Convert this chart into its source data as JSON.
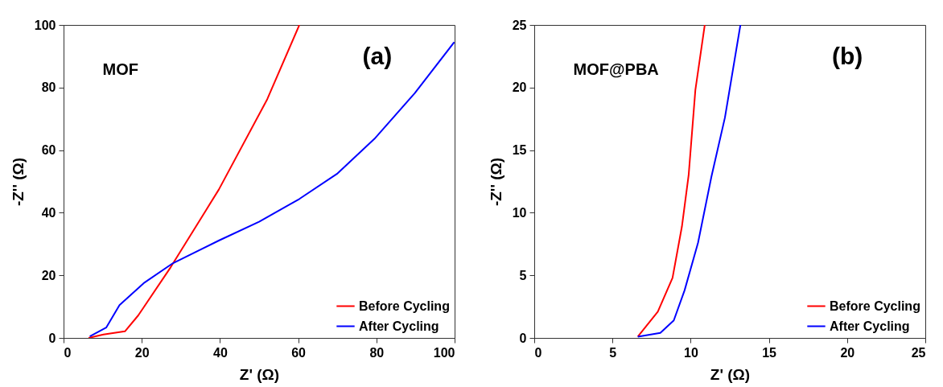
{
  "chart_data": [
    {
      "type": "line",
      "xlabel": "Z' (Ω)",
      "ylabel": "-Z'' (Ω)",
      "annotations": [
        "MOF",
        "(a)"
      ],
      "xlim": [
        0,
        100
      ],
      "ylim": [
        0,
        100
      ],
      "xticks": [
        0,
        20,
        40,
        60,
        80,
        100
      ],
      "yticks": [
        0,
        20,
        40,
        60,
        80,
        100
      ],
      "legend": "bottom right",
      "series": [
        {
          "name": "Before Cycling",
          "color": "#ff0000",
          "x": [
            6.4,
            10.2,
            15.7,
            19.1,
            27.4,
            39.7,
            52.1,
            60.3
          ],
          "values": [
            0,
            1.1,
            2.1,
            7.2,
            22.6,
            47.4,
            76.3,
            100
          ]
        },
        {
          "name": "After Cycling",
          "color": "#0000ff",
          "x": [
            6.7,
            10.9,
            14.3,
            20.5,
            28.0,
            39.7,
            50,
            60.3,
            69.9,
            79.5,
            89.8,
            99.9
          ],
          "values": [
            0.5,
            3.3,
            10.5,
            17.5,
            23.9,
            31.1,
            37.1,
            44.4,
            52.4,
            63.6,
            78.2,
            94.5
          ]
        }
      ]
    },
    {
      "type": "line",
      "xlabel": "Z' (Ω)",
      "ylabel": "-Z'' (Ω)",
      "annotations": [
        "MOF@PBA",
        "(b)"
      ],
      "xlim": [
        0,
        25
      ],
      "ylim": [
        0,
        25
      ],
      "xticks": [
        0,
        5,
        10,
        15,
        20,
        25
      ],
      "yticks": [
        0,
        5,
        10,
        15,
        20,
        25
      ],
      "legend": "bottom right",
      "series": [
        {
          "name": "Before Cycling",
          "color": "#ff0000",
          "x": [
            6.62,
            7.9,
            8.84,
            9.44,
            9.87,
            10.3,
            10.9
          ],
          "values": [
            0.1,
            2.1,
            4.8,
            8.9,
            13.0,
            19.8,
            25
          ]
        },
        {
          "name": "After Cycling",
          "color": "#0000ff",
          "x": [
            6.62,
            8.06,
            8.92,
            9.61,
            10.47,
            11.33,
            12.19,
            13.18
          ],
          "values": [
            0.1,
            0.4,
            1.4,
            3.8,
            7.6,
            12.9,
            17.6,
            25
          ]
        }
      ]
    }
  ]
}
